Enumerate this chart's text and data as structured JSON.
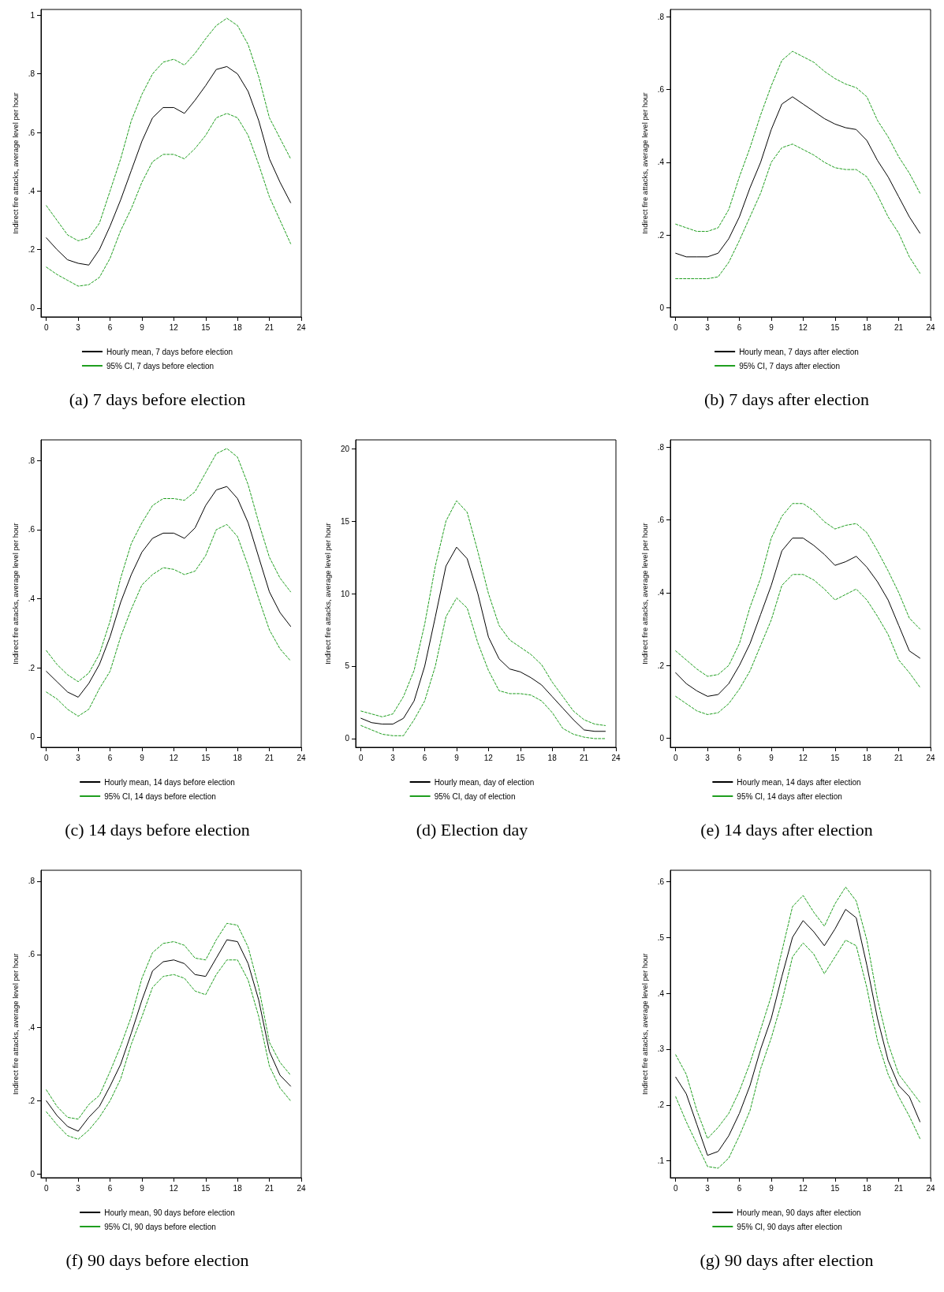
{
  "chart_data": [
    {
      "type": "line",
      "title": "(a) 7 days before election",
      "ylabel": "Indirect fire attacks, average level per hour",
      "x": [
        0,
        1,
        2,
        3,
        4,
        5,
        6,
        7,
        8,
        9,
        10,
        11,
        12,
        13,
        14,
        15,
        16,
        17,
        18,
        19,
        20,
        21,
        22,
        23
      ],
      "xlim": [
        -0.5,
        24
      ],
      "xticks": [
        0,
        3,
        6,
        9,
        12,
        15,
        18,
        21,
        24
      ],
      "ylim": [
        -0.03,
        1.02
      ],
      "yticks": [
        0,
        {
          "value": 0.2,
          "label": ".2"
        },
        {
          "value": 0.4,
          "label": ".4"
        },
        {
          "value": 0.6,
          "label": ".6"
        },
        {
          "value": 0.8,
          "label": ".8"
        },
        1
      ],
      "legend": "bottom",
      "marker": "none",
      "series": [
        {
          "name": "Hourly mean, 7 days before election",
          "color": "#000000",
          "line_style": "solid",
          "values": [
            0.24,
            0.2,
            0.165,
            0.153,
            0.147,
            0.2,
            0.28,
            0.37,
            0.47,
            0.57,
            0.65,
            0.685,
            0.685,
            0.665,
            0.71,
            0.76,
            0.815,
            0.825,
            0.8,
            0.74,
            0.64,
            0.51,
            0.43,
            0.36
          ]
        },
        {
          "name": "95% CI, 7 days before election",
          "color": "#1f9e1f",
          "line_style": "dashed",
          "values": [
            0.35,
            0.3,
            0.25,
            0.23,
            0.24,
            0.29,
            0.4,
            0.51,
            0.64,
            0.73,
            0.8,
            0.84,
            0.85,
            0.83,
            0.87,
            0.92,
            0.965,
            0.99,
            0.965,
            0.9,
            0.79,
            0.65,
            0.58,
            0.51
          ]
        },
        {
          "color": "#1f9e1f",
          "line_style": "dashed",
          "values": [
            0.14,
            0.115,
            0.095,
            0.075,
            0.08,
            0.105,
            0.17,
            0.265,
            0.34,
            0.43,
            0.5,
            0.525,
            0.525,
            0.51,
            0.545,
            0.59,
            0.65,
            0.665,
            0.65,
            0.59,
            0.49,
            0.38,
            0.3,
            0.22
          ]
        }
      ]
    },
    {
      "type": "line",
      "title": "(b) 7 days after election",
      "ylabel": "Indirect fire attacks, average level per hour",
      "x": [
        0,
        1,
        2,
        3,
        4,
        5,
        6,
        7,
        8,
        9,
        10,
        11,
        12,
        13,
        14,
        15,
        16,
        17,
        18,
        19,
        20,
        21,
        22,
        23
      ],
      "xlim": [
        -0.5,
        24
      ],
      "xticks": [
        0,
        3,
        6,
        9,
        12,
        15,
        18,
        21,
        24
      ],
      "ylim": [
        -0.025,
        0.82
      ],
      "yticks": [
        0,
        {
          "value": 0.2,
          "label": ".2"
        },
        {
          "value": 0.4,
          "label": ".4"
        },
        {
          "value": 0.6,
          "label": ".6"
        },
        {
          "value": 0.8,
          "label": ".8"
        }
      ],
      "legend": "bottom",
      "marker": "none",
      "series": [
        {
          "name": "Hourly mean, 7 days after election",
          "color": "#000000",
          "line_style": "solid",
          "values": [
            0.15,
            0.14,
            0.14,
            0.14,
            0.15,
            0.19,
            0.25,
            0.33,
            0.4,
            0.49,
            0.56,
            0.58,
            0.56,
            0.54,
            0.52,
            0.505,
            0.495,
            0.49,
            0.46,
            0.405,
            0.36,
            0.305,
            0.25,
            0.205
          ]
        },
        {
          "name": "95% CI, 7 days after election",
          "color": "#1f9e1f",
          "line_style": "dashed",
          "values": [
            0.23,
            0.22,
            0.21,
            0.21,
            0.22,
            0.27,
            0.36,
            0.44,
            0.53,
            0.61,
            0.68,
            0.705,
            0.69,
            0.675,
            0.65,
            0.63,
            0.615,
            0.605,
            0.58,
            0.515,
            0.47,
            0.415,
            0.37,
            0.315
          ]
        },
        {
          "color": "#1f9e1f",
          "line_style": "dashed",
          "values": [
            0.08,
            0.08,
            0.08,
            0.08,
            0.085,
            0.125,
            0.185,
            0.25,
            0.315,
            0.4,
            0.44,
            0.45,
            0.435,
            0.42,
            0.4,
            0.385,
            0.38,
            0.38,
            0.36,
            0.31,
            0.25,
            0.205,
            0.14,
            0.095
          ]
        }
      ]
    },
    {
      "type": "line",
      "title": "(c) 14 days before election",
      "ylabel": "Indirect fire attacks, average level per hour",
      "x": [
        0,
        1,
        2,
        3,
        4,
        5,
        6,
        7,
        8,
        9,
        10,
        11,
        12,
        13,
        14,
        15,
        16,
        17,
        18,
        19,
        20,
        21,
        22,
        23
      ],
      "xlim": [
        -0.5,
        24
      ],
      "xticks": [
        0,
        3,
        6,
        9,
        12,
        15,
        18,
        21,
        24
      ],
      "ylim": [
        -0.03,
        0.86
      ],
      "yticks": [
        0,
        {
          "value": 0.2,
          "label": ".2"
        },
        {
          "value": 0.4,
          "label": ".4"
        },
        {
          "value": 0.6,
          "label": ".6"
        },
        {
          "value": 0.8,
          "label": ".8"
        }
      ],
      "legend": "bottom",
      "marker": "none",
      "series": [
        {
          "name": "Hourly mean, 14 days before election",
          "color": "#000000",
          "line_style": "solid",
          "values": [
            0.19,
            0.16,
            0.13,
            0.115,
            0.155,
            0.21,
            0.29,
            0.39,
            0.47,
            0.535,
            0.575,
            0.59,
            0.59,
            0.575,
            0.605,
            0.67,
            0.715,
            0.725,
            0.69,
            0.62,
            0.52,
            0.42,
            0.36,
            0.32
          ]
        },
        {
          "name": "95% CI, 14 days before election",
          "color": "#1f9e1f",
          "line_style": "dashed",
          "values": [
            0.25,
            0.21,
            0.18,
            0.16,
            0.185,
            0.24,
            0.335,
            0.46,
            0.56,
            0.62,
            0.67,
            0.69,
            0.69,
            0.685,
            0.71,
            0.765,
            0.82,
            0.835,
            0.81,
            0.73,
            0.62,
            0.52,
            0.46,
            0.42
          ]
        },
        {
          "color": "#1f9e1f",
          "line_style": "dashed",
          "values": [
            0.13,
            0.11,
            0.08,
            0.06,
            0.08,
            0.14,
            0.19,
            0.29,
            0.37,
            0.44,
            0.47,
            0.49,
            0.485,
            0.47,
            0.48,
            0.525,
            0.6,
            0.615,
            0.58,
            0.495,
            0.4,
            0.31,
            0.255,
            0.22
          ]
        }
      ]
    },
    {
      "type": "line",
      "title": "(d) Election day",
      "ylabel": "Indirect fire attacks, average level per hour",
      "x": [
        0,
        1,
        2,
        3,
        4,
        5,
        6,
        7,
        8,
        9,
        10,
        11,
        12,
        13,
        14,
        15,
        16,
        17,
        18,
        19,
        20,
        21,
        22,
        23
      ],
      "xlim": [
        -0.5,
        24
      ],
      "xticks": [
        0,
        3,
        6,
        9,
        12,
        15,
        18,
        21,
        24
      ],
      "ylim": [
        -0.6,
        20.6
      ],
      "yticks": [
        0,
        5,
        10,
        15,
        20
      ],
      "legend": "bottom",
      "marker": "none",
      "series": [
        {
          "name": "Hourly mean, day of election",
          "color": "#000000",
          "line_style": "solid",
          "values": [
            1.4,
            1.1,
            1.0,
            1.0,
            1.4,
            2.6,
            5.0,
            8.4,
            11.9,
            13.2,
            12.4,
            10.0,
            7.0,
            5.5,
            4.8,
            4.6,
            4.2,
            3.7,
            2.9,
            2.1,
            1.3,
            0.6,
            0.5,
            0.5
          ]
        },
        {
          "name": "95% CI, day of election",
          "color": "#1f9e1f",
          "line_style": "dashed",
          "values": [
            1.9,
            1.7,
            1.5,
            1.7,
            2.9,
            4.7,
            7.9,
            11.9,
            15.0,
            16.4,
            15.6,
            12.9,
            10.0,
            7.8,
            6.8,
            6.3,
            5.8,
            5.1,
            3.9,
            2.9,
            1.9,
            1.3,
            1.0,
            0.9
          ]
        },
        {
          "color": "#1f9e1f",
          "line_style": "dashed",
          "values": [
            0.9,
            0.6,
            0.3,
            0.2,
            0.2,
            1.3,
            2.6,
            5.0,
            8.4,
            9.7,
            9.0,
            6.6,
            4.7,
            3.3,
            3.1,
            3.1,
            3.0,
            2.6,
            1.8,
            0.7,
            0.3,
            0.1,
            0,
            0
          ]
        }
      ]
    },
    {
      "type": "line",
      "title": "(e) 14 days after election",
      "ylabel": "Indirect fire attacks, average level per hour",
      "x": [
        0,
        1,
        2,
        3,
        4,
        5,
        6,
        7,
        8,
        9,
        10,
        11,
        12,
        13,
        14,
        15,
        16,
        17,
        18,
        19,
        20,
        21,
        22,
        23
      ],
      "xlim": [
        -0.5,
        24
      ],
      "xticks": [
        0,
        3,
        6,
        9,
        12,
        15,
        18,
        21,
        24
      ],
      "ylim": [
        -0.025,
        0.82
      ],
      "yticks": [
        0,
        {
          "value": 0.2,
          "label": ".2"
        },
        {
          "value": 0.4,
          "label": ".4"
        },
        {
          "value": 0.6,
          "label": ".6"
        },
        {
          "value": 0.8,
          "label": ".8"
        }
      ],
      "legend": "bottom",
      "marker": "none",
      "series": [
        {
          "name": "Hourly mean, 14 days after election",
          "color": "#000000",
          "line_style": "solid",
          "values": [
            0.18,
            0.15,
            0.13,
            0.115,
            0.12,
            0.15,
            0.2,
            0.26,
            0.34,
            0.42,
            0.515,
            0.55,
            0.55,
            0.53,
            0.505,
            0.475,
            0.485,
            0.5,
            0.47,
            0.43,
            0.38,
            0.31,
            0.24,
            0.22
          ]
        },
        {
          "name": "95% CI, 14 days after election",
          "color": "#1f9e1f",
          "line_style": "dashed",
          "values": [
            0.24,
            0.215,
            0.19,
            0.17,
            0.175,
            0.2,
            0.26,
            0.36,
            0.44,
            0.55,
            0.61,
            0.645,
            0.645,
            0.625,
            0.595,
            0.575,
            0.585,
            0.59,
            0.565,
            0.515,
            0.46,
            0.4,
            0.33,
            0.3
          ]
        },
        {
          "color": "#1f9e1f",
          "line_style": "dashed",
          "values": [
            0.115,
            0.095,
            0.075,
            0.065,
            0.07,
            0.095,
            0.135,
            0.185,
            0.255,
            0.325,
            0.42,
            0.45,
            0.45,
            0.435,
            0.41,
            0.38,
            0.395,
            0.41,
            0.38,
            0.335,
            0.285,
            0.215,
            0.18,
            0.14
          ]
        }
      ]
    },
    {
      "type": "line",
      "title": "(f) 90 days before election",
      "ylabel": "Indirect fire attacks, average level per hour",
      "x": [
        0,
        1,
        2,
        3,
        4,
        5,
        6,
        7,
        8,
        9,
        10,
        11,
        12,
        13,
        14,
        15,
        16,
        17,
        18,
        19,
        20,
        21,
        22,
        23
      ],
      "xlim": [
        -0.5,
        24
      ],
      "xticks": [
        0,
        3,
        6,
        9,
        12,
        15,
        18,
        21,
        24
      ],
      "ylim": [
        -0.01,
        0.83
      ],
      "yticks": [
        0,
        {
          "value": 0.2,
          "label": ".2"
        },
        {
          "value": 0.4,
          "label": ".4"
        },
        {
          "value": 0.6,
          "label": ".6"
        },
        {
          "value": 0.8,
          "label": ".8"
        }
      ],
      "legend": "bottom",
      "marker": "none",
      "series": [
        {
          "name": "Hourly mean, 90 days before election",
          "color": "#000000",
          "line_style": "solid",
          "values": [
            0.2,
            0.16,
            0.13,
            0.117,
            0.155,
            0.185,
            0.24,
            0.3,
            0.385,
            0.475,
            0.555,
            0.58,
            0.585,
            0.575,
            0.545,
            0.54,
            0.59,
            0.64,
            0.635,
            0.575,
            0.475,
            0.335,
            0.27,
            0.24
          ]
        },
        {
          "name": "95% CI, 90 days before election",
          "color": "#1f9e1f",
          "line_style": "dashed",
          "values": [
            0.23,
            0.185,
            0.155,
            0.15,
            0.19,
            0.215,
            0.28,
            0.35,
            0.43,
            0.535,
            0.605,
            0.63,
            0.635,
            0.625,
            0.59,
            0.585,
            0.64,
            0.685,
            0.68,
            0.62,
            0.51,
            0.36,
            0.305,
            0.27
          ]
        },
        {
          "color": "#1f9e1f",
          "line_style": "dashed",
          "values": [
            0.17,
            0.135,
            0.105,
            0.095,
            0.12,
            0.155,
            0.2,
            0.26,
            0.355,
            0.43,
            0.51,
            0.54,
            0.545,
            0.535,
            0.5,
            0.49,
            0.545,
            0.585,
            0.585,
            0.53,
            0.43,
            0.295,
            0.235,
            0.2
          ]
        }
      ]
    },
    {
      "type": "line",
      "title": "(g) 90 days after election",
      "ylabel": "Indirect fire attacks, average level per hour",
      "x": [
        0,
        1,
        2,
        3,
        4,
        5,
        6,
        7,
        8,
        9,
        10,
        11,
        12,
        13,
        14,
        15,
        16,
        17,
        18,
        19,
        20,
        21,
        22,
        23
      ],
      "xlim": [
        -0.5,
        24
      ],
      "xticks": [
        0,
        3,
        6,
        9,
        12,
        15,
        18,
        21,
        24
      ],
      "ylim": [
        0.07,
        0.62
      ],
      "yticks": [
        {
          "value": 0.1,
          "label": ".1"
        },
        {
          "value": 0.2,
          "label": ".2"
        },
        {
          "value": 0.3,
          "label": ".3"
        },
        {
          "value": 0.4,
          "label": ".4"
        },
        {
          "value": 0.5,
          "label": ".5"
        },
        {
          "value": 0.6,
          "label": ".6"
        }
      ],
      "legend": "bottom",
      "marker": "none",
      "series": [
        {
          "name": "Hourly mean, 90 days after election",
          "color": "#000000",
          "line_style": "solid",
          "values": [
            0.25,
            0.22,
            0.165,
            0.11,
            0.117,
            0.145,
            0.185,
            0.235,
            0.3,
            0.355,
            0.43,
            0.5,
            0.53,
            0.51,
            0.485,
            0.515,
            0.55,
            0.535,
            0.45,
            0.355,
            0.28,
            0.235,
            0.215,
            0.17
          ]
        },
        {
          "name": "95% CI, 90 days after election",
          "color": "#1f9e1f",
          "line_style": "dashed",
          "values": [
            0.29,
            0.255,
            0.19,
            0.14,
            0.16,
            0.185,
            0.225,
            0.275,
            0.335,
            0.395,
            0.475,
            0.555,
            0.575,
            0.545,
            0.52,
            0.56,
            0.59,
            0.565,
            0.495,
            0.39,
            0.31,
            0.255,
            0.23,
            0.205
          ]
        },
        {
          "color": "#1f9e1f",
          "line_style": "dashed",
          "values": [
            0.215,
            0.17,
            0.13,
            0.09,
            0.087,
            0.105,
            0.145,
            0.19,
            0.265,
            0.32,
            0.385,
            0.465,
            0.49,
            0.47,
            0.435,
            0.465,
            0.495,
            0.485,
            0.41,
            0.315,
            0.255,
            0.215,
            0.18,
            0.14
          ]
        }
      ]
    }
  ]
}
